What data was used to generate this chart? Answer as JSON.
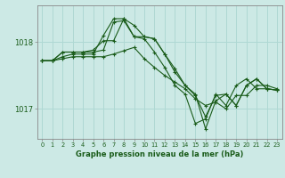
{
  "title": "",
  "xlabel": "Graphe pression niveau de la mer (hPa)",
  "ylabel": "",
  "background_color": "#cce9e5",
  "grid_color": "#afd8d3",
  "line_color": "#1a5c1a",
  "marker_color": "#1a5c1a",
  "tick_label_color": "#1a5c1a",
  "axis_label_color": "#1a5c1a",
  "yticks": [
    1017,
    1018
  ],
  "ylim": [
    1016.55,
    1018.55
  ],
  "xlim": [
    -0.5,
    23.5
  ],
  "xticks": [
    0,
    1,
    2,
    3,
    4,
    5,
    6,
    7,
    8,
    9,
    10,
    11,
    12,
    13,
    14,
    15,
    16,
    17,
    18,
    19,
    20,
    21,
    22,
    23
  ],
  "series": [
    [
      1017.72,
      1017.72,
      1017.75,
      1017.78,
      1017.78,
      1017.78,
      1017.78,
      1017.82,
      1017.87,
      1017.92,
      1017.75,
      1017.62,
      1017.5,
      1017.4,
      1017.3,
      1017.15,
      1017.05,
      1017.1,
      1017.0,
      1017.2,
      1017.2,
      1017.35,
      1017.35,
      1017.3
    ],
    [
      1017.72,
      1017.72,
      1017.78,
      1017.82,
      1017.82,
      1017.82,
      1018.1,
      1018.35,
      1018.35,
      1018.08,
      1018.05,
      1017.85,
      1017.62,
      1017.35,
      1017.22,
      1016.78,
      1016.85,
      1017.22,
      1017.05,
      1017.35,
      1017.45,
      1017.3,
      1017.3,
      1017.28
    ],
    [
      1017.72,
      1017.72,
      1017.85,
      1017.85,
      1017.85,
      1017.85,
      1017.88,
      1018.3,
      1018.32,
      1018.08,
      1018.08,
      1018.05,
      1017.82,
      1017.55,
      1017.35,
      1017.22,
      1016.7,
      1017.12,
      1017.22,
      1017.05,
      1017.35,
      1017.45,
      1017.3,
      1017.28
    ],
    [
      1017.72,
      1017.72,
      1017.85,
      1017.85,
      1017.85,
      1017.88,
      1018.02,
      1018.02,
      1018.35,
      1018.25,
      1018.08,
      1018.05,
      1017.82,
      1017.6,
      1017.35,
      1017.2,
      1016.88,
      1017.2,
      1017.22,
      1017.05,
      1017.35,
      1017.45,
      1017.3,
      1017.28
    ]
  ]
}
